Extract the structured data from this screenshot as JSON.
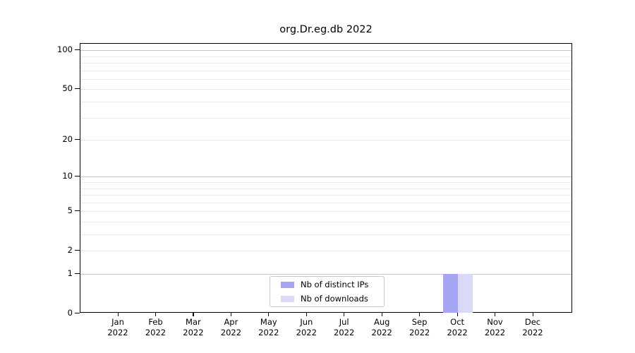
{
  "chart_data": {
    "type": "bar",
    "title": "org.Dr.eg.db 2022",
    "x_categories": [
      "Jan",
      "Feb",
      "Mar",
      "Apr",
      "May",
      "Jun",
      "Jul",
      "Aug",
      "Sep",
      "Oct",
      "Nov",
      "Dec"
    ],
    "x_year": "2022",
    "series": [
      {
        "name": "Nb of distinct IPs",
        "color": "#a5a5f3",
        "values": [
          0,
          0,
          0,
          0,
          0,
          0,
          0,
          0,
          0,
          1,
          0,
          0
        ]
      },
      {
        "name": "Nb of downloads",
        "color": "#dadaf8",
        "values": [
          0,
          0,
          0,
          0,
          0,
          0,
          0,
          0,
          0,
          1,
          0,
          0
        ]
      }
    ],
    "y_axis": {
      "scale": "log1p",
      "ticks": [
        0,
        1,
        2,
        5,
        10,
        20,
        50,
        100
      ],
      "max": 112,
      "major_grid": [
        1,
        10,
        100
      ],
      "minor_grid": [
        2,
        3,
        4,
        5,
        6,
        7,
        8,
        9,
        20,
        30,
        40,
        50,
        60,
        70,
        80,
        90
      ]
    },
    "legend_position": "bottom-center",
    "colors": {
      "grid_major": "#c6c6c6",
      "grid_minor": "#eaeaea",
      "spine": "#000000"
    },
    "grid": true
  }
}
